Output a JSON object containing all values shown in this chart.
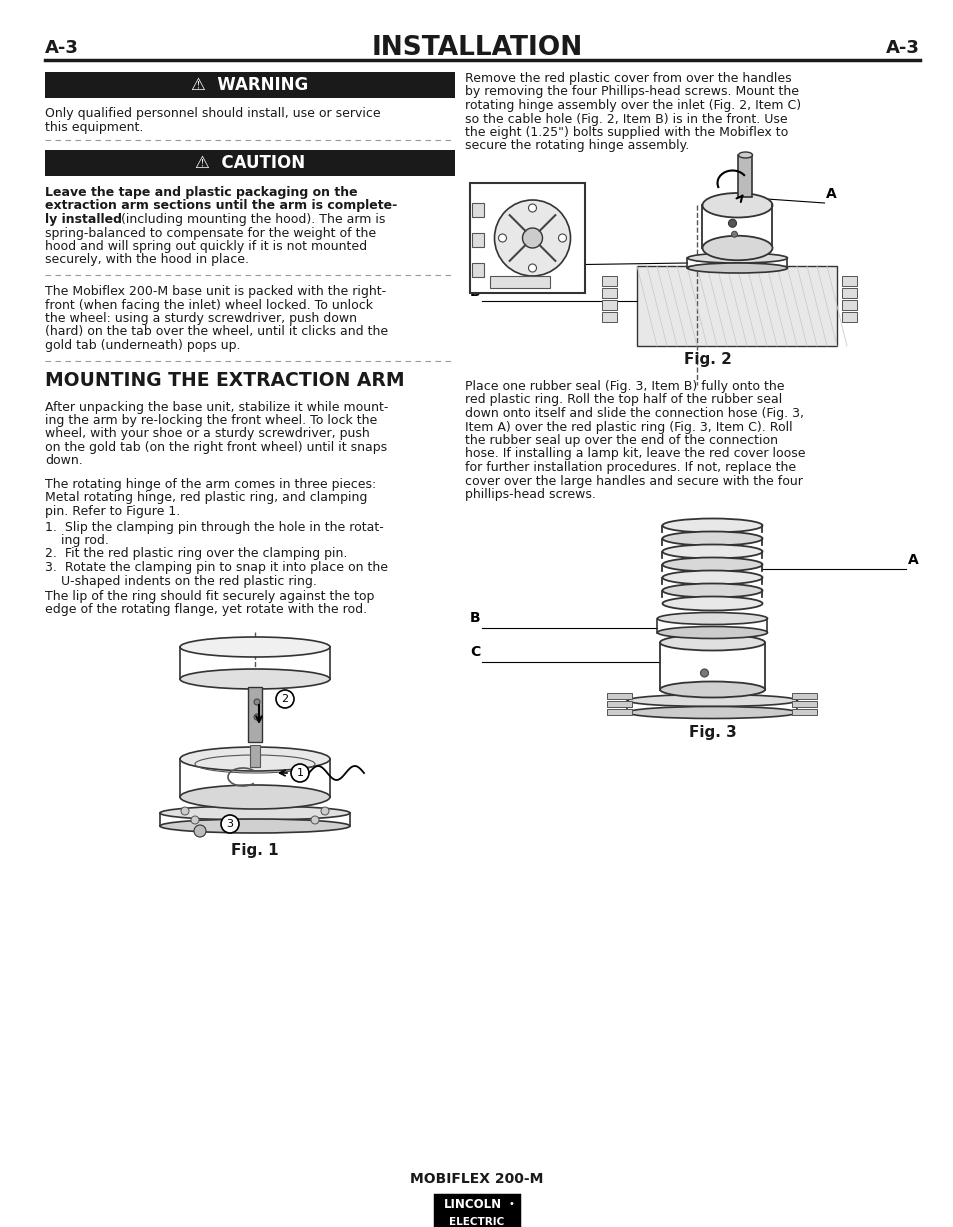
{
  "title": "INSTALLATION",
  "page_id": "A-3",
  "bg_color": "#ffffff",
  "text_color": "#1a1a1a",
  "header_line_color": "#1a1a1a",
  "warning_bg": "#1a1a1a",
  "warning_text": "⚠  WARNING",
  "warning_body_line1": "Only qualified personnel should install, use or service",
  "warning_body_line2": "this equipment.",
  "caution_bg": "#1a1a1a",
  "caution_text": "⚠  CAUTION",
  "caution_bold_lines": [
    "Leave the tape and plastic packaging on the",
    "extraction arm sections until the arm is complete-",
    "ly installed"
  ],
  "caution_normal_after_bold": " (including mounting the hood). The arm is",
  "caution_normal_lines": [
    "spring-balanced to compensate for the weight of the",
    "hood and will spring out quickly if it is not mounted",
    "securely, with the hood in place."
  ],
  "para1_lines": [
    "The Mobiflex 200-M base unit is packed with the right-",
    "front (when facing the inlet) wheel locked. To unlock",
    "the wheel: using a sturdy screwdriver, push down",
    "(hard) on the tab over the wheel, until it clicks and the",
    "gold tab (underneath) pops up."
  ],
  "section_title": "MOUNTING THE EXTRACTION ARM",
  "para2_lines": [
    "After unpacking the base unit, stabilize it while mount-",
    "ing the arm by re-locking the front wheel. To lock the",
    "wheel, with your shoe or a sturdy screwdriver, push",
    "on the gold tab (on the right front wheel) until it snaps",
    "down."
  ],
  "para3_lines": [
    "The rotating hinge of the arm comes in three pieces:",
    "Metal rotating hinge, red plastic ring, and clamping",
    "pin. Refer to Figure 1."
  ],
  "step_lines": [
    [
      "1.  Slip the clamping pin through the hole in the rotat-",
      "    ing rod."
    ],
    [
      "2.  Fit the red plastic ring over the clamping pin."
    ],
    [
      "3.  Rotate the clamping pin to snap it into place on the",
      "    U-shaped indents on the red plastic ring."
    ]
  ],
  "para4_lines": [
    "The lip of the ring should fit securely against the top",
    "edge of the rotating flange, yet rotate with the rod."
  ],
  "fig1_label": "Fig. 1",
  "rp1_lines": [
    "Remove the red plastic cover from over the handles",
    "by removing the four Phillips-head screws. Mount the",
    "rotating hinge assembly over the inlet (Fig. 2, Item C)",
    "so the cable hole (Fig. 2, Item B) is in the front. Use",
    "the eight (1.25\") bolts supplied with the Mobiflex to",
    "secure the rotating hinge assembly."
  ],
  "fig2_label": "Fig. 2",
  "rp2_lines": [
    "Place one rubber seal (Fig. 3, Item B) fully onto the",
    "red plastic ring. Roll the top half of the rubber seal",
    "down onto itself and slide the connection hose (Fig. 3,",
    "Item A) over the red plastic ring (Fig. 3, Item C). Roll",
    "the rubber seal up over the end of the connection",
    "hose. If installing a lamp kit, leave the red cover loose",
    "for further installation procedures. If not, replace the",
    "cover over the large handles and secure with the four",
    "phillips-head screws."
  ],
  "fig3_label": "Fig. 3",
  "footer_text": "MOBIFLEX 200-M",
  "footer_logo_top": "LINCOLN",
  "footer_logo_bottom": "ELECTRIC"
}
